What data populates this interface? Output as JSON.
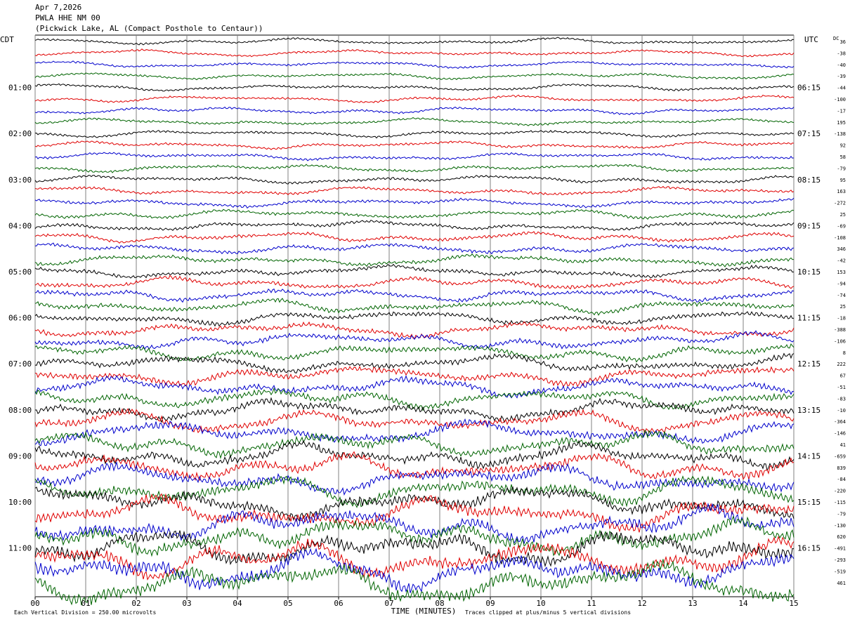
{
  "header": {
    "date": "Apr 7,2026",
    "station": "PWLA HHE NM 00",
    "location": "(Pickwick Lake, AL (Compact Posthole to Centaur))"
  },
  "chart_data": {
    "type": "line",
    "title": "Apr 7,2026",
    "left_axis_label": "CDT",
    "right_axis_label": "UTC",
    "dc_label": "DC",
    "xlabel": "TIME (MINUTES)",
    "x_ticks": [
      "00",
      "01",
      "02",
      "03",
      "04",
      "05",
      "06",
      "07",
      "08",
      "09",
      "10",
      "11",
      "12",
      "13",
      "14",
      "15"
    ],
    "xlim": [
      0,
      15
    ],
    "left_hour_labels": [
      "01:00",
      "02:00",
      "03:00",
      "04:00",
      "05:00",
      "06:00",
      "07:00",
      "08:00",
      "09:00",
      "10:00",
      "11:00"
    ],
    "right_hour_labels": [
      "06:15",
      "07:15",
      "08:15",
      "09:15",
      "10:15",
      "11:15",
      "12:15",
      "13:15",
      "14:15",
      "15:15",
      "16:15"
    ],
    "trace_colors": [
      "#000000",
      "#e00000",
      "#0000cc",
      "#006400"
    ],
    "traces_per_hour": 4,
    "trace_minutes": 15,
    "dc_offsets": [
      "36",
      "-38",
      "-40",
      "-39",
      "-44",
      "-100",
      "-17",
      "195",
      "-138",
      "92",
      "58",
      "-79",
      "95",
      "163",
      "-272",
      "25",
      "-69",
      "-108",
      "346",
      "-42",
      "153",
      "-94",
      "-74",
      "25",
      "-18",
      "-388",
      "-106",
      "8",
      "222",
      "67",
      "-51",
      "-83",
      "-10",
      "-364",
      "-146",
      "41",
      "-659",
      "839",
      "-84",
      "-220",
      "-115",
      "-79",
      "-130",
      "620",
      "-491",
      "-293",
      "-519",
      "461"
    ],
    "footer_left": "Each Vertical Division =  250.00 microvolts",
    "footer_right": "Traces clipped at plus/minus 5 vertical divisions"
  }
}
